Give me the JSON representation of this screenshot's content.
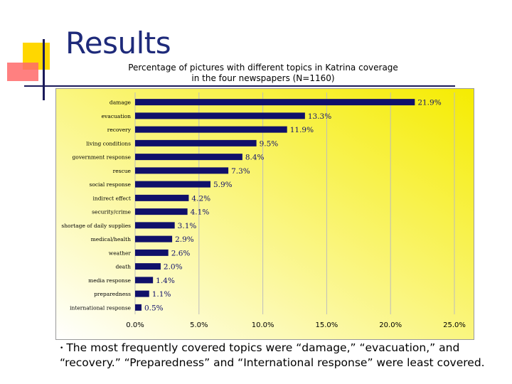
{
  "slide": {
    "title": "Results",
    "bullet": "The most frequently covered topics were “damage,” “evacuation,” and “recovery.”  “Preparedness” and “International response” were least covered."
  },
  "colors": {
    "bar": "#10106a",
    "title": "#1e2a7a",
    "background_start": "#ffffff",
    "background_end": "#f5ec00"
  },
  "chart_data": {
    "type": "bar",
    "orientation": "horizontal",
    "title_line1": "Percentage of pictures with different topics in Katrina coverage",
    "title_line2": "in the four newspapers (N=1160)",
    "categories": [
      "damage",
      "evacuation",
      "recovery",
      "living conditions",
      "government response",
      "rescue",
      "social response",
      "indirect effect",
      "security/crime",
      "shortage of daily supplies",
      "medical/health",
      "weather",
      "death",
      "media response",
      "preparedness",
      "international response"
    ],
    "values": [
      21.9,
      13.3,
      11.9,
      9.5,
      8.4,
      7.3,
      5.9,
      4.2,
      4.1,
      3.1,
      2.9,
      2.6,
      2.0,
      1.4,
      1.1,
      0.5
    ],
    "value_labels": [
      "21.9%",
      "13.3%",
      "11.9%",
      "9.5%",
      "8.4%",
      "7.3%",
      "5.9%",
      "4.2%",
      "4.1%",
      "3.1%",
      "2.9%",
      "2.6%",
      "2.0%",
      "1.4%",
      "1.1%",
      "0.5%"
    ],
    "xticks": [
      0,
      5,
      10,
      15,
      20,
      25
    ],
    "xtick_labels": [
      "0.0%",
      "5.0%",
      "10.0%",
      "15.0%",
      "20.0%",
      "25.0%"
    ],
    "xlim": [
      0,
      25
    ],
    "xlabel": "",
    "ylabel": "",
    "grid": true
  }
}
